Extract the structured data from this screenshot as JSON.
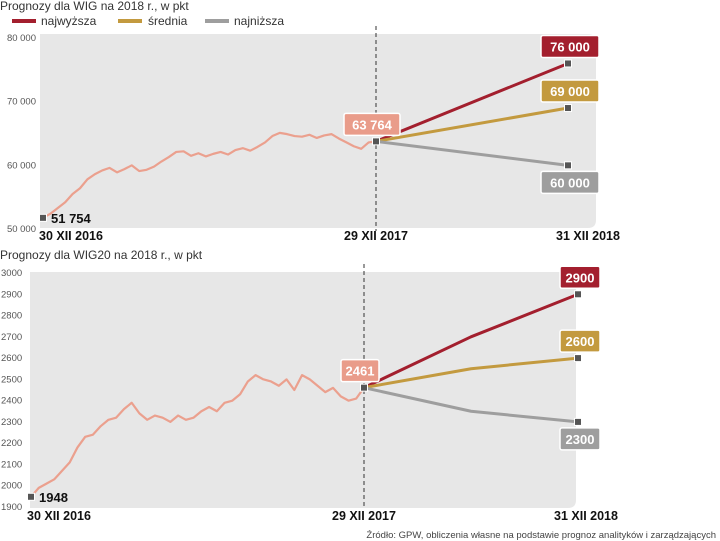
{
  "colors": {
    "highest": "#a31f2e",
    "average": "#c39a3f",
    "lowest": "#9e9e9e",
    "history": "#eba08e",
    "current_badge": "#e99c8a",
    "panel": "#e7e7e7",
    "marker": "#555555"
  },
  "legend": [
    {
      "label": "najwyższa",
      "color": "#a31f2e"
    },
    {
      "label": "średnia",
      "color": "#c39a3f"
    },
    {
      "label": "najniższa",
      "color": "#9e9e9e"
    }
  ],
  "source": "Źródło: GPW, obliczenia własne na podstawie prognoz analityków i zarządzających",
  "chart_data": [
    {
      "type": "line",
      "title": "Prognozy dla WIG na 2018 r., w pkt",
      "ylim": [
        50000,
        80000
      ],
      "y_ticks": [
        "80 000",
        "70 000",
        "60 000",
        "50 000"
      ],
      "y_tick_values": [
        80000,
        70000,
        60000,
        50000
      ],
      "x_labels": [
        "30 XII 2016",
        "29 XII 2017",
        "31 XII 2018"
      ],
      "history": {
        "start_value": 51754,
        "start_label": "51 754",
        "end_value": 63764,
        "end_label": "63 764",
        "values": [
          51754,
          52400,
          53300,
          54200,
          55500,
          56400,
          57800,
          58600,
          59200,
          59600,
          58900,
          59400,
          60000,
          59100,
          59300,
          59800,
          60600,
          61300,
          62100,
          62200,
          61500,
          61900,
          61400,
          61800,
          62100,
          61700,
          62400,
          62700,
          62300,
          62900,
          63600,
          64600,
          65100,
          64900,
          64600,
          64500,
          64800,
          64300,
          64700,
          64900,
          64200,
          63600,
          63000,
          62600,
          63600,
          63764
        ]
      },
      "series": [
        {
          "name": "najwyższa",
          "values": [
            63764,
            76000
          ],
          "label": "76 000"
        },
        {
          "name": "średnia",
          "values": [
            63764,
            69000
          ],
          "label": "69 000"
        },
        {
          "name": "najniższa",
          "values": [
            63764,
            60000
          ],
          "label": "60 000"
        }
      ]
    },
    {
      "type": "line",
      "title": "Prognozy dla WIG20 na  2018 r., w pkt",
      "ylim": [
        1900,
        3000
      ],
      "y_ticks": [
        "3000",
        "2900",
        "2800",
        "2700",
        "2600",
        "2500",
        "2400",
        "2300",
        "2200",
        "2100",
        "2000",
        "1900"
      ],
      "y_tick_values": [
        3000,
        2900,
        2800,
        2700,
        2600,
        2500,
        2400,
        2300,
        2200,
        2100,
        2000,
        1900
      ],
      "x_labels": [
        "30 XII 2016",
        "29 XII 2017",
        "31 XII 2018"
      ],
      "history": {
        "start_value": 1948,
        "start_label": "1948",
        "end_value": 2461,
        "end_label": "2461",
        "values": [
          1948,
          1990,
          2010,
          2030,
          2070,
          2110,
          2180,
          2230,
          2240,
          2280,
          2310,
          2320,
          2360,
          2390,
          2340,
          2310,
          2330,
          2320,
          2300,
          2330,
          2310,
          2320,
          2350,
          2370,
          2350,
          2390,
          2400,
          2430,
          2490,
          2520,
          2500,
          2490,
          2470,
          2500,
          2450,
          2520,
          2500,
          2470,
          2440,
          2460,
          2420,
          2400,
          2410,
          2461
        ]
      },
      "series": [
        {
          "name": "najwyższa",
          "values": [
            2461,
            2700,
            2900
          ],
          "label": "2900"
        },
        {
          "name": "średnia",
          "values": [
            2461,
            2550,
            2600
          ],
          "label": "2600"
        },
        {
          "name": "najniższa",
          "values": [
            2461,
            2350,
            2300
          ],
          "label": "2300"
        }
      ]
    }
  ]
}
